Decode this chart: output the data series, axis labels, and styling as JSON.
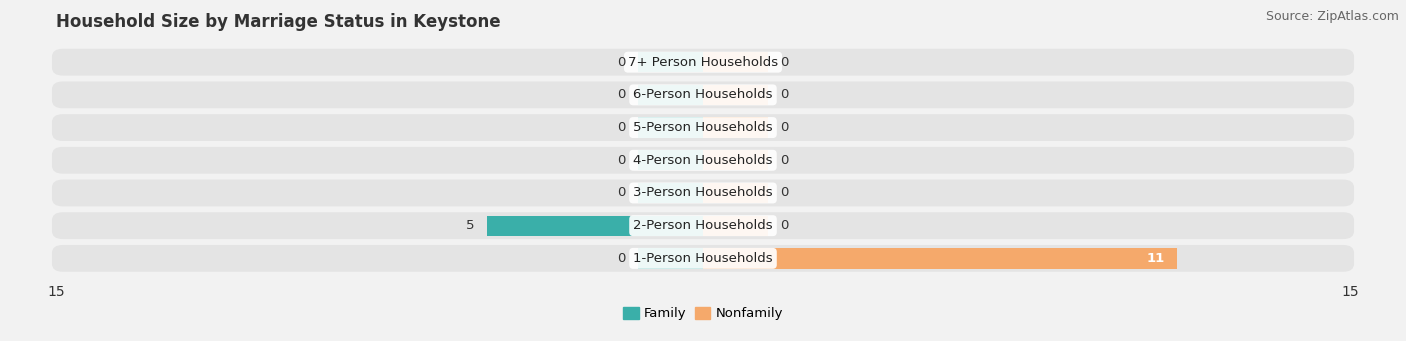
{
  "title": "Household Size by Marriage Status in Keystone",
  "source": "Source: ZipAtlas.com",
  "categories": [
    "1-Person Households",
    "2-Person Households",
    "3-Person Households",
    "4-Person Households",
    "5-Person Households",
    "6-Person Households",
    "7+ Person Households"
  ],
  "family_values": [
    0,
    5,
    0,
    0,
    0,
    0,
    0
  ],
  "nonfamily_values": [
    11,
    0,
    0,
    0,
    0,
    0,
    0
  ],
  "family_color": "#3aafa9",
  "nonfamily_color": "#f5a96b",
  "background_color": "#f2f2f2",
  "row_bg_color": "#e4e4e4",
  "xlim": 15,
  "bar_height": 0.62,
  "title_fontsize": 12,
  "label_fontsize": 9.5,
  "tick_fontsize": 10,
  "source_fontsize": 9,
  "stub_size": 1.5
}
